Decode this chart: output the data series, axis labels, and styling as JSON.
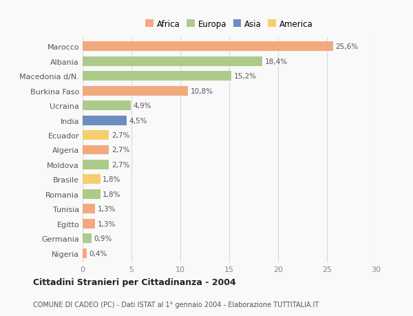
{
  "categories": [
    "Marocco",
    "Albania",
    "Macedonia d/N.",
    "Burkina Faso",
    "Ucraina",
    "India",
    "Ecuador",
    "Algeria",
    "Moldova",
    "Brasile",
    "Romania",
    "Tunisia",
    "Egitto",
    "Germania",
    "Nigeria"
  ],
  "values": [
    25.6,
    18.4,
    15.2,
    10.8,
    4.9,
    4.5,
    2.7,
    2.7,
    2.7,
    1.8,
    1.8,
    1.3,
    1.3,
    0.9,
    0.4
  ],
  "labels": [
    "25,6%",
    "18,4%",
    "15,2%",
    "10,8%",
    "4,9%",
    "4,5%",
    "2,7%",
    "2,7%",
    "2,7%",
    "1,8%",
    "1,8%",
    "1,3%",
    "1,3%",
    "0,9%",
    "0,4%"
  ],
  "colors": [
    "#F2A97E",
    "#AECA8A",
    "#AECA8A",
    "#F2A97E",
    "#AECA8A",
    "#6B8DBF",
    "#F5CE6E",
    "#F2A97E",
    "#AECA8A",
    "#F5CE6E",
    "#AECA8A",
    "#F2A97E",
    "#F2A97E",
    "#AECA8A",
    "#F2A97E"
  ],
  "legend_labels": [
    "Africa",
    "Europa",
    "Asia",
    "America"
  ],
  "legend_colors": [
    "#F2A97E",
    "#AECA8A",
    "#6B8DBF",
    "#F5CE6E"
  ],
  "title": "Cittadini Stranieri per Cittadinanza - 2004",
  "subtitle": "COMUNE DI CADEO (PC) - Dati ISTAT al 1° gennaio 2004 - Elaborazione TUTTITALIA.IT",
  "xlim": [
    0,
    30
  ],
  "xticks": [
    0,
    5,
    10,
    15,
    20,
    25,
    30
  ],
  "bg_color": "#f9f9f9",
  "grid_color": "#d8d8d8",
  "bar_height": 0.65
}
